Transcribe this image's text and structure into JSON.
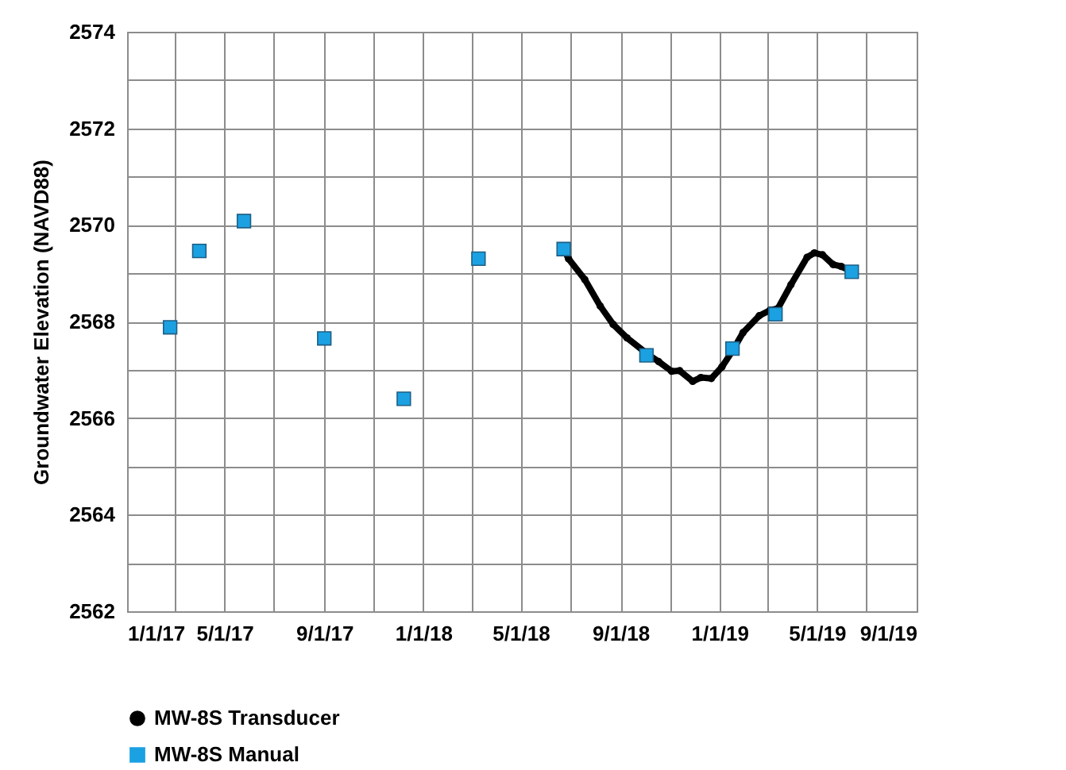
{
  "chart_data": {
    "type": "line",
    "ylabel": "Groundwater Elevation (NAVD88)",
    "xlim": [
      "2017-01-01",
      "2019-09-01"
    ],
    "xticks": [
      {
        "value": "2017-01-01",
        "label": "1/1/17"
      },
      {
        "value": "2017-03-01",
        "label": null
      },
      {
        "value": "2017-05-01",
        "label": "5/1/17"
      },
      {
        "value": "2017-07-01",
        "label": null
      },
      {
        "value": "2017-09-01",
        "label": "9/1/17"
      },
      {
        "value": "2017-11-01",
        "label": null
      },
      {
        "value": "2018-01-01",
        "label": "1/1/18"
      },
      {
        "value": "2018-03-01",
        "label": null
      },
      {
        "value": "2018-05-01",
        "label": "5/1/18"
      },
      {
        "value": "2018-07-01",
        "label": null
      },
      {
        "value": "2018-09-01",
        "label": "9/1/18"
      },
      {
        "value": "2018-11-01",
        "label": null
      },
      {
        "value": "2019-01-01",
        "label": "1/1/19"
      },
      {
        "value": "2019-03-01",
        "label": null
      },
      {
        "value": "2019-05-01",
        "label": "5/1/19"
      },
      {
        "value": "2019-07-01",
        "label": null
      },
      {
        "value": "2019-09-01",
        "label": "9/1/19"
      }
    ],
    "ylim": [
      2562,
      2574
    ],
    "yticks": [
      2562,
      {
        "value": 2563,
        "label": null
      },
      2564,
      {
        "value": 2565,
        "label": null
      },
      2566,
      {
        "value": 2567,
        "label": null
      },
      2568,
      {
        "value": 2569,
        "label": null
      },
      2570,
      {
        "value": 2571,
        "label": null
      },
      2572,
      {
        "value": 2573,
        "label": null
      },
      2574
    ],
    "grid": true,
    "legend": "bottom left",
    "line_style": "solid",
    "series": [
      {
        "name": "MW-8S Transducer",
        "marker": "circle",
        "color": "#000000",
        "x": [
          "2018-06-23",
          "2018-06-29",
          "2018-07-19",
          "2018-08-07",
          "2018-08-23",
          "2018-09-09",
          "2018-10-04",
          "2018-10-18",
          "2018-11-03",
          "2018-11-13",
          "2018-11-29",
          "2018-12-09",
          "2018-12-22",
          "2019-01-04",
          "2019-01-17",
          "2019-01-30",
          "2019-02-19",
          "2019-03-04",
          "2019-03-14",
          "2019-03-30",
          "2019-04-19",
          "2019-04-28",
          "2019-05-08",
          "2019-05-21",
          "2019-05-31",
          "2019-06-10"
        ],
        "values": [
          2569.5,
          2569.3,
          2568.87,
          2568.32,
          2567.94,
          2567.66,
          2567.33,
          2567.17,
          2566.97,
          2566.98,
          2566.76,
          2566.84,
          2566.82,
          2567.06,
          2567.39,
          2567.77,
          2568.12,
          2568.23,
          2568.27,
          2568.76,
          2569.33,
          2569.42,
          2569.38,
          2569.18,
          2569.14,
          2569.06
        ]
      },
      {
        "name": "MW-8S Manual",
        "type": "scatter",
        "marker": "square",
        "color": "#1ba1e2",
        "x": [
          "2017-02-23",
          "2017-03-31",
          "2017-05-25",
          "2017-09-01",
          "2017-12-08",
          "2018-03-10",
          "2018-06-23",
          "2018-10-03",
          "2019-01-17",
          "2019-03-11",
          "2019-06-13"
        ],
        "values": [
          2567.88,
          2569.46,
          2570.08,
          2567.65,
          2566.4,
          2569.3,
          2569.5,
          2567.3,
          2567.44,
          2568.15,
          2569.03
        ]
      }
    ]
  }
}
